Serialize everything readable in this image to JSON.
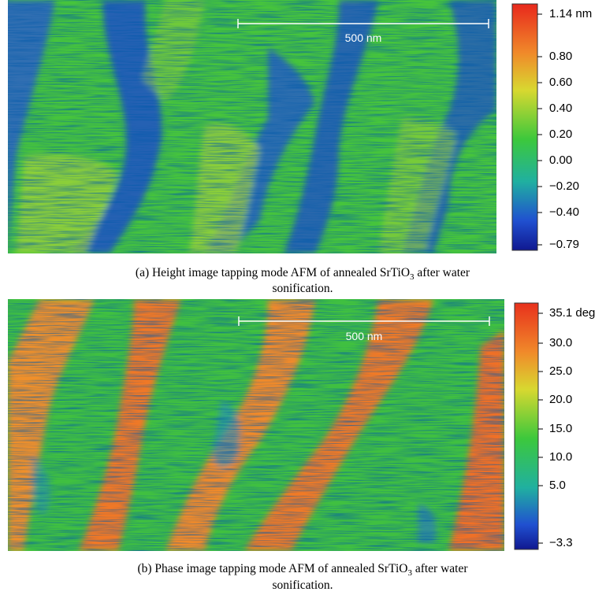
{
  "panels": [
    {
      "scale_bar": "500 nm",
      "colorbar_ticks": [
        "1.14 nm",
        "0.80",
        "0.60",
        "0.40",
        "0.20",
        "0.00",
        "−0.20",
        "−0.40",
        "−0.79"
      ],
      "caption": {
        "before": "(a) Height image tapping mode AFM of annealed SrTiO",
        "sub": "3",
        "after": " after water",
        "line2": "sonification."
      }
    },
    {
      "scale_bar": "500 nm",
      "colorbar_ticks": [
        "35.1 deg",
        "30.0",
        "25.0",
        "20.0",
        "15.0",
        "10.0",
        "5.0",
        "−3.3"
      ],
      "caption": {
        "before": "(b) Phase image tapping mode AFM of annealed SrTiO",
        "sub": "3",
        "after": " after water",
        "line2": "sonification."
      }
    }
  ]
}
